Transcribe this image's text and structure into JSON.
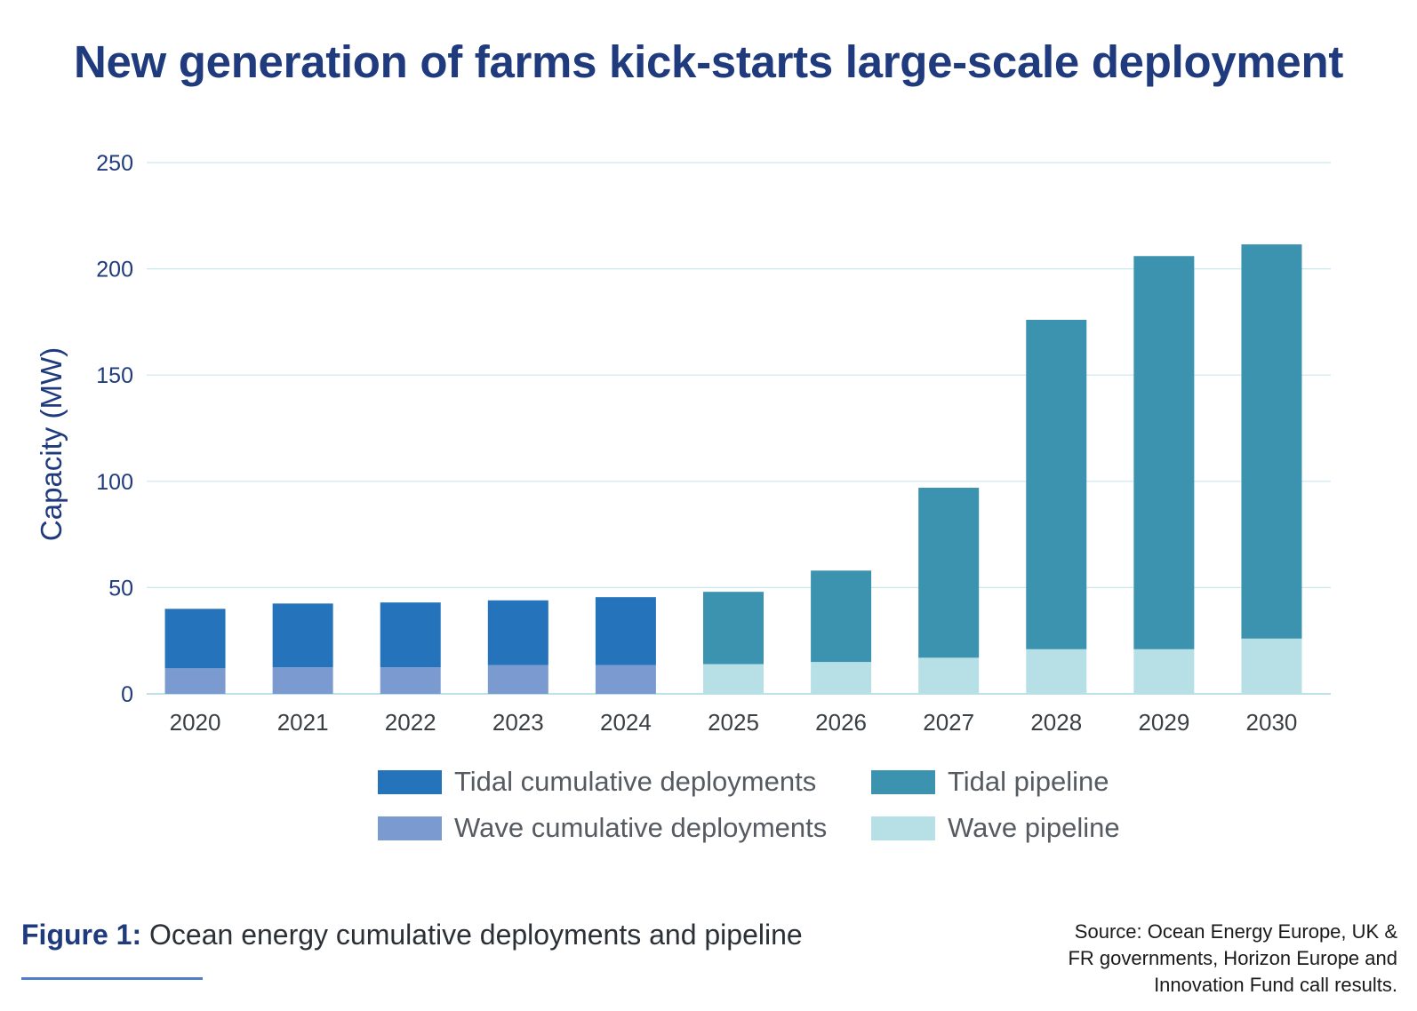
{
  "title": "New generation of farms kick-starts large-scale deployment",
  "chart_data": {
    "type": "bar",
    "stacked": true,
    "categories": [
      "2020",
      "2021",
      "2022",
      "2023",
      "2024",
      "2025",
      "2026",
      "2027",
      "2028",
      "2029",
      "2030"
    ],
    "series": [
      {
        "name": "Wave cumulative deployments",
        "color": "#7b9bd0",
        "values": [
          12,
          12.5,
          12.5,
          13.5,
          13.5,
          null,
          null,
          null,
          null,
          null,
          null
        ]
      },
      {
        "name": "Tidal cumulative deployments",
        "color": "#2574bb",
        "values": [
          28,
          30,
          30.5,
          30.5,
          32,
          null,
          null,
          null,
          null,
          null,
          null
        ]
      },
      {
        "name": "Wave pipeline",
        "color": "#b7dfe6",
        "values": [
          null,
          null,
          null,
          null,
          null,
          14,
          15,
          17,
          21,
          21,
          26
        ]
      },
      {
        "name": "Tidal pipeline",
        "color": "#3b93b0",
        "values": [
          null,
          null,
          null,
          null,
          null,
          34,
          43,
          80,
          155,
          185,
          185.5
        ]
      }
    ],
    "xlabel": "",
    "ylabel": "Capacity (MW)",
    "ylim": [
      0,
      250
    ],
    "yticks": [
      0,
      50,
      100,
      150,
      200,
      250
    ],
    "grid": true,
    "legend": {
      "placement": "bottom",
      "items": [
        {
          "label": "Tidal cumulative deployments",
          "color": "#2574bb"
        },
        {
          "label": "Tidal pipeline",
          "color": "#3b93b0"
        },
        {
          "label": "Wave cumulative deployments",
          "color": "#7b9bd0"
        },
        {
          "label": "Wave pipeline",
          "color": "#b7dfe6"
        }
      ]
    }
  },
  "caption": {
    "lead": "Figure 1:",
    "text": " Ocean energy cumulative deployments and pipeline"
  },
  "source": {
    "lines": [
      "Source: Ocean Energy Europe, UK &",
      "FR governments, Horizon Europe and",
      "Innovation Fund call results."
    ]
  }
}
